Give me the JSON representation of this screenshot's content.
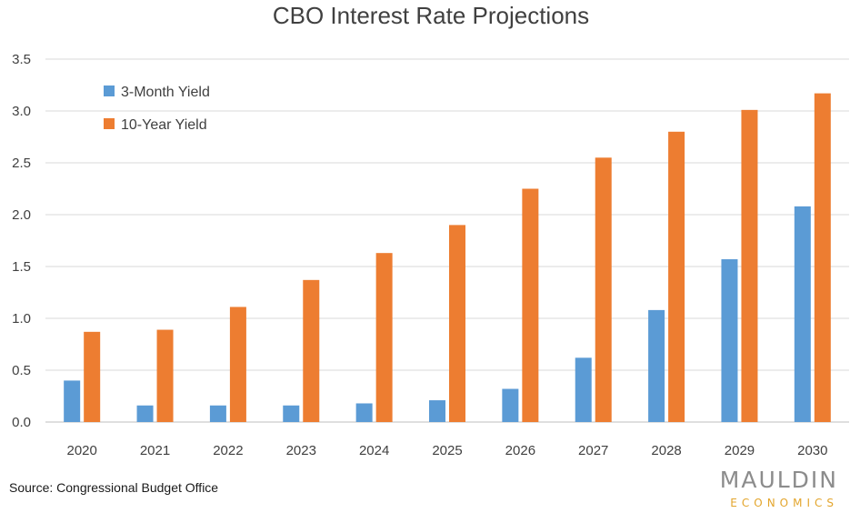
{
  "chart_data": {
    "type": "bar",
    "title": "CBO Interest Rate Projections",
    "xlabel": "",
    "ylabel": "",
    "categories": [
      "2020",
      "2021",
      "2022",
      "2023",
      "2024",
      "2025",
      "2026",
      "2027",
      "2028",
      "2029",
      "2030"
    ],
    "series": [
      {
        "name": "3-Month Yield",
        "color": "#5b9bd5",
        "values": [
          0.4,
          0.16,
          0.16,
          0.16,
          0.18,
          0.21,
          0.32,
          0.62,
          1.08,
          1.57,
          2.08
        ]
      },
      {
        "name": "10-Year Yield",
        "color": "#ed7d31",
        "values": [
          0.87,
          0.89,
          1.11,
          1.37,
          1.63,
          1.9,
          2.25,
          2.55,
          2.8,
          3.01,
          3.17
        ]
      }
    ],
    "ylim": [
      0,
      3.5
    ],
    "yticks": [
      "0.0",
      "0.5",
      "1.0",
      "1.5",
      "2.0",
      "2.5",
      "3.0",
      "3.5"
    ],
    "grid": true,
    "legend_position": "top-left"
  },
  "source": "Source: Congressional Budget Office",
  "logo": {
    "line1": "MAULDIN",
    "line2": "ECONOMICS",
    "color_main": "#8c8c8c",
    "color_sub": "#e3a52c"
  }
}
